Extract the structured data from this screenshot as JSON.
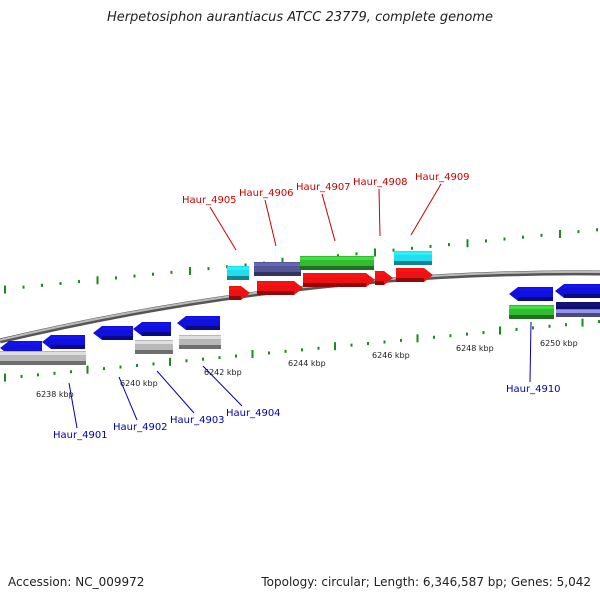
{
  "title": "Herpetosiphon aurantiacus ATCC 23779, complete genome",
  "footer": {
    "accession": "Accession: NC_009972",
    "summary": "Topology: circular; Length: 6,346,587 bp; Genes: 5,042"
  },
  "colors": {
    "red": "#ee1111",
    "blue": "#1111dd",
    "gray": "#b8b8b8",
    "cyan": "#22ddee",
    "green": "#33bb33",
    "slate": "#55559a",
    "navy": "#10106a",
    "tick": "#1a8a1a",
    "label_top": "#cc0000",
    "label_bottom": "#0000b0"
  },
  "scale_labels": [
    "6238 kbp",
    "6240 kbp",
    "6242 kbp",
    "6244 kbp",
    "6246 kbp",
    "6248 kbp",
    "6250 kbp"
  ],
  "gene_labels_top": [
    "Haur_4905",
    "Haur_4906",
    "Haur_4907",
    "Haur_4908",
    "Haur_4909"
  ],
  "gene_labels_bottom": [
    "Haur_4901",
    "Haur_4902",
    "Haur_4903",
    "Haur_4904",
    "Haur_4910"
  ]
}
